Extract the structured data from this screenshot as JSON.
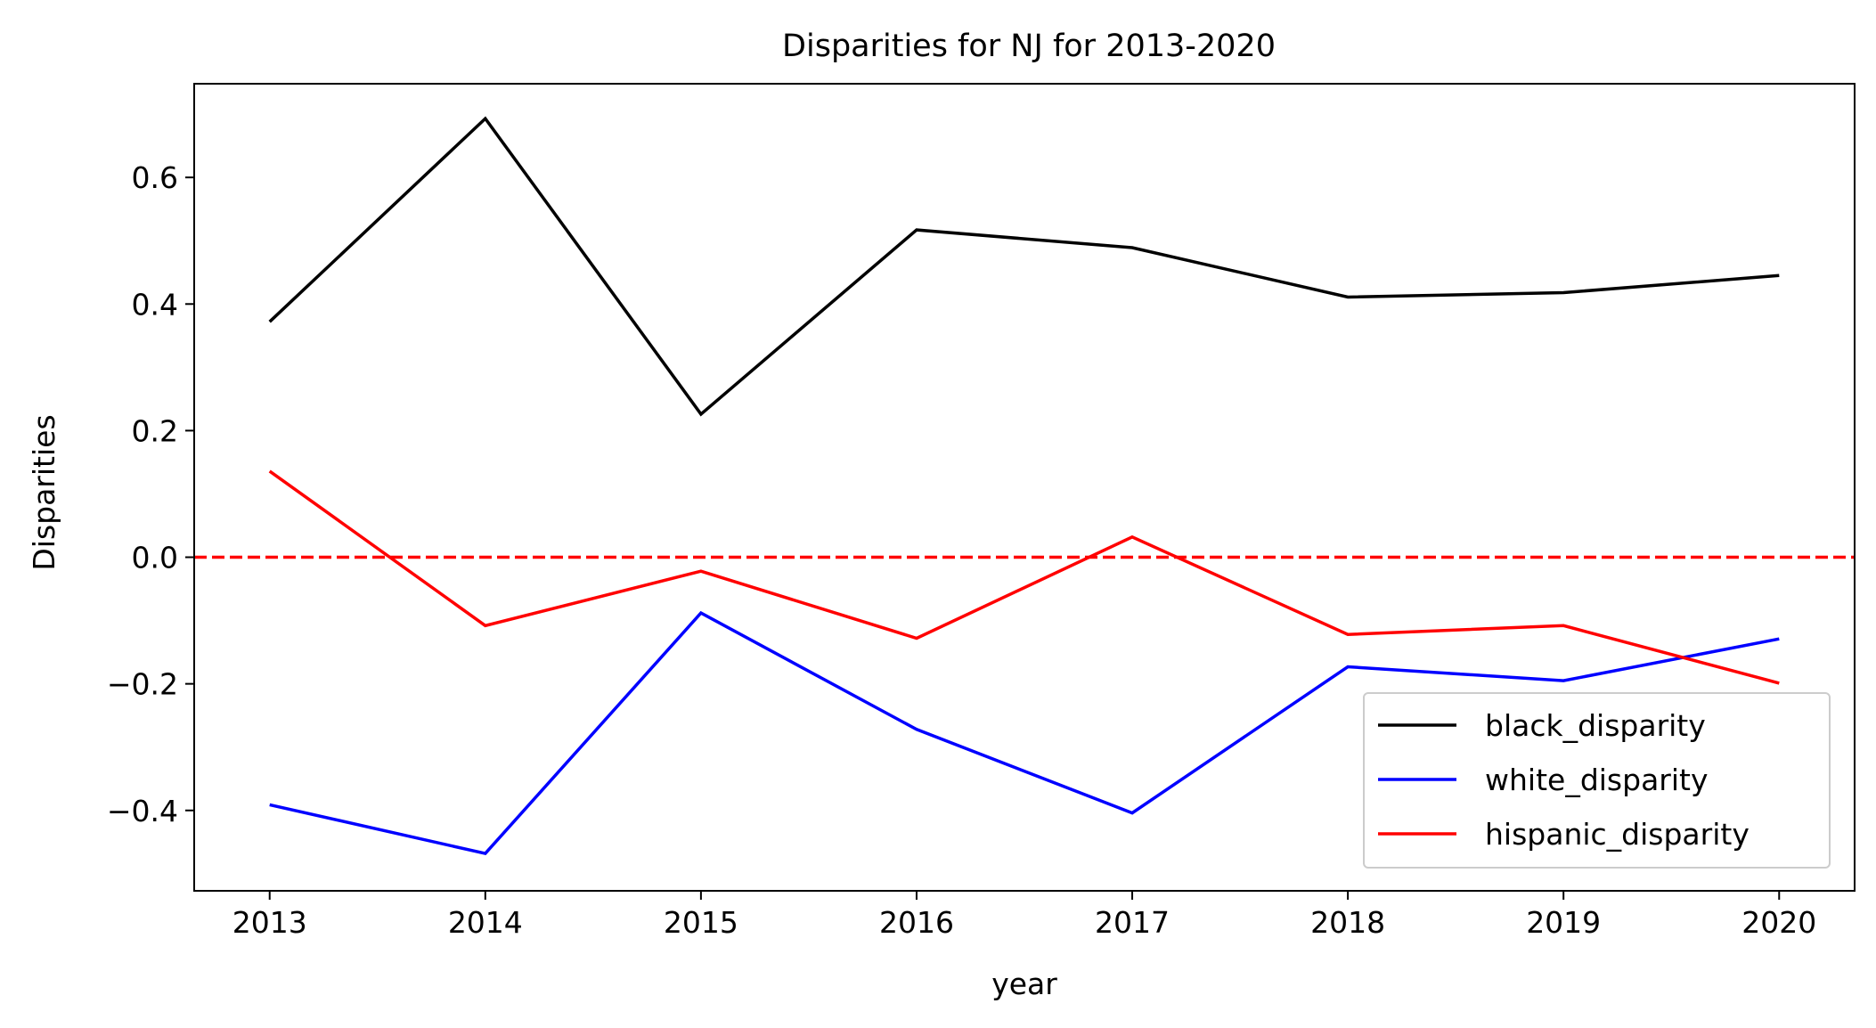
{
  "chart_data": {
    "type": "line",
    "title": "Disparities for NJ for 2013-2020",
    "xlabel": "year",
    "ylabel": "Disparities",
    "x": [
      2013,
      2014,
      2015,
      2016,
      2017,
      2018,
      2019,
      2020
    ],
    "x_tick_labels": [
      "2013",
      "2014",
      "2015",
      "2016",
      "2017",
      "2018",
      "2019",
      "2020"
    ],
    "y_ticks": [
      -0.4,
      -0.2,
      0.0,
      0.2,
      0.4,
      0.6
    ],
    "y_tick_labels": [
      "−0.4",
      "−0.2",
      "0.0",
      "0.2",
      "0.4",
      "0.6"
    ],
    "xlim": [
      2012.65,
      2020.35
    ],
    "ylim": [
      -0.527,
      0.748
    ],
    "grid": false,
    "legend": {
      "position": "lower right"
    },
    "reference_line": {
      "y": 0.0,
      "style": "dashed",
      "color": "#ff0000"
    },
    "series": [
      {
        "name": "black_disparity",
        "color": "#000000",
        "values": [
          0.372,
          0.693,
          0.226,
          0.517,
          0.489,
          0.411,
          0.418,
          0.445
        ]
      },
      {
        "name": "white_disparity",
        "color": "#0000ff",
        "values": [
          -0.391,
          -0.468,
          -0.088,
          -0.272,
          -0.404,
          -0.173,
          -0.195,
          -0.129
        ]
      },
      {
        "name": "hispanic_disparity",
        "color": "#ff0000",
        "values": [
          0.136,
          -0.108,
          -0.022,
          -0.128,
          0.032,
          -0.122,
          -0.108,
          -0.199
        ]
      }
    ]
  }
}
